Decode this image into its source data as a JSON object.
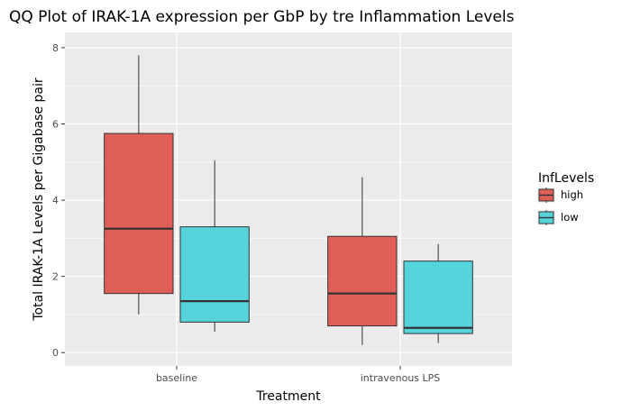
{
  "chart_data": {
    "type": "box",
    "title": "QQ Plot of IRAK-1A expression per GbP by tre Inflammation Levels",
    "xlabel": "Treatment",
    "ylabel": "Total IRAK-1A Levels per Gigabase pair",
    "ylim": [
      -0.35,
      8.4
    ],
    "yticks": [
      0,
      2,
      4,
      6,
      8
    ],
    "categories": [
      "baseline",
      "intravenous LPS"
    ],
    "grid": true,
    "legend": {
      "title": "InfLevels",
      "position": "right"
    },
    "series": [
      {
        "name": "high",
        "color": "#df5f58",
        "boxes": [
          {
            "category": "baseline",
            "min": 1.0,
            "q1": 1.55,
            "median": 3.25,
            "q3": 5.75,
            "max": 7.8
          },
          {
            "category": "intravenous LPS",
            "min": 0.2,
            "q1": 0.7,
            "median": 1.55,
            "q3": 3.05,
            "max": 4.6
          }
        ]
      },
      {
        "name": "low",
        "color": "#56d4dc",
        "boxes": [
          {
            "category": "baseline",
            "min": 0.55,
            "q1": 0.8,
            "median": 1.35,
            "q3": 3.3,
            "max": 5.05
          },
          {
            "category": "intravenous LPS",
            "min": 0.25,
            "q1": 0.5,
            "median": 0.65,
            "q3": 2.4,
            "max": 2.85
          }
        ]
      }
    ]
  }
}
